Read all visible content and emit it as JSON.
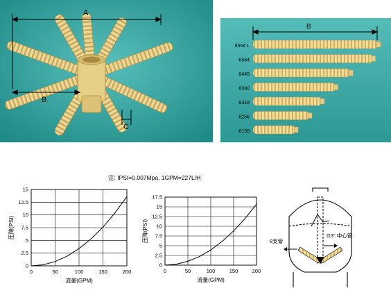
{
  "hub_image": {
    "dim_a": "A",
    "dim_b": "B",
    "dim_c": "C",
    "colors": {
      "background": "#2f9e9a",
      "tube": "#e9d38e",
      "tube_groove": "#c7a85a"
    }
  },
  "tube_image": {
    "dim_b": "B",
    "models": [
      "8564 L",
      "8564",
      "8445",
      "8380",
      "8318",
      "8256",
      "8190"
    ],
    "tube_lengths_relative": [
      1.0,
      0.96,
      0.78,
      0.66,
      0.55,
      0.45,
      0.34
    ],
    "colors": {
      "background": "#3aa8a4",
      "tube": "#efd892"
    }
  },
  "note": "注: IPSI=0.007Mpa, 1GPM=227L/H",
  "chart_data": [
    {
      "type": "line",
      "xlabel": "流量(GPM)",
      "ylabel": "压降(PSI)",
      "xlim": [
        0,
        200
      ],
      "ylim": [
        0,
        15
      ],
      "x_ticks": [
        "0",
        "50",
        "100",
        "150",
        "200"
      ],
      "y_ticks": [
        "0",
        "2.5",
        "5",
        "7.5",
        "10",
        "12.5",
        "15"
      ],
      "grid": true,
      "series": [
        {
          "x": [
            0,
            25,
            50,
            75,
            100,
            125,
            150,
            175,
            200
          ],
          "y": [
            0,
            0.2,
            0.85,
            1.9,
            3.4,
            5.3,
            7.6,
            10.4,
            13.6
          ]
        }
      ]
    },
    {
      "type": "line",
      "xlabel": "流量(GPM)",
      "ylabel": "压降(PSI)",
      "xlim": [
        0,
        200
      ],
      "ylim": [
        0,
        17.5
      ],
      "x_ticks": [
        "0",
        "50",
        "100",
        "150",
        "200"
      ],
      "y_ticks": [
        "0",
        "2.5",
        "5",
        "7.5",
        "10",
        "12.5",
        "15",
        "17.5"
      ],
      "grid": true,
      "series": [
        {
          "x": [
            0,
            25,
            50,
            75,
            100,
            125,
            150,
            175,
            200
          ],
          "y": [
            0,
            0.25,
            1.0,
            2.2,
            3.9,
            6.1,
            8.8,
            12.0,
            15.7
          ]
        }
      ]
    }
  ],
  "tank": {
    "label_laterals": "8支管",
    "label_center": "G3\" 中心管"
  }
}
